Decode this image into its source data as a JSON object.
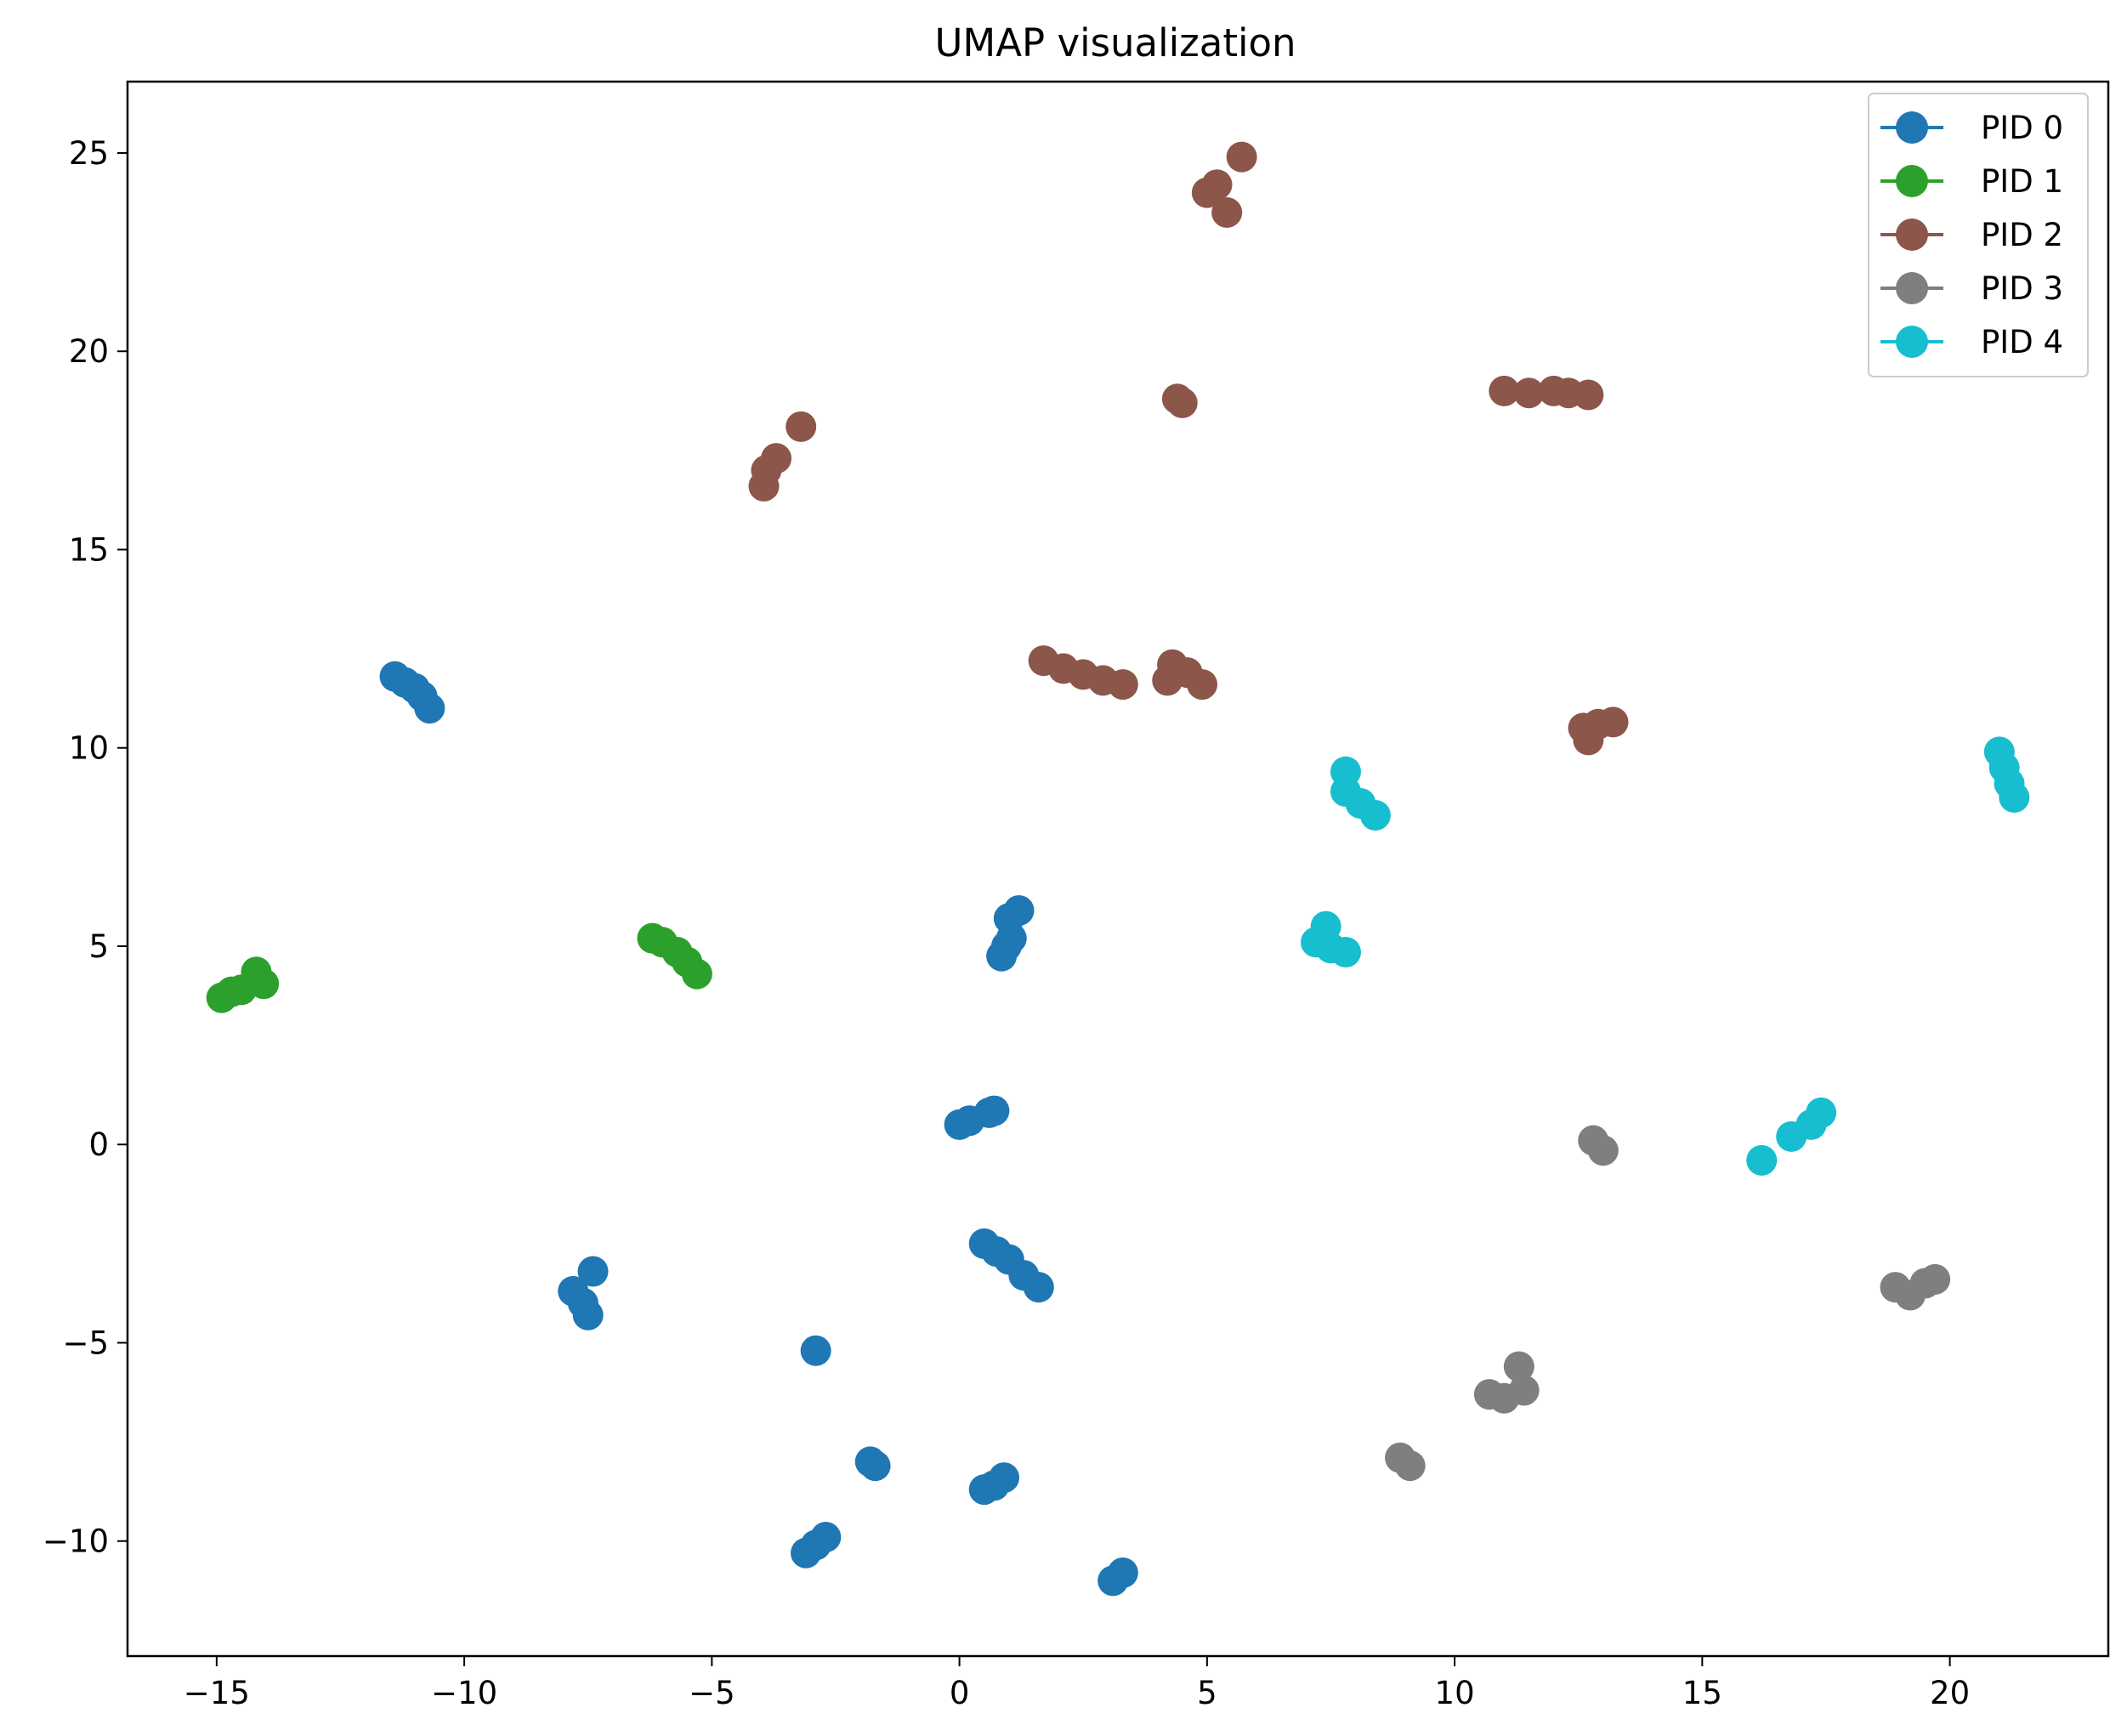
{
  "chart_data": {
    "type": "scatter",
    "title": "UMAP visualization",
    "xlabel": "",
    "ylabel": "",
    "xlim": [
      -16.8,
      23.2
    ],
    "ylim": [
      -12.9,
      26.8
    ],
    "xticks": [
      -15,
      -10,
      -5,
      0,
      5,
      10,
      15,
      20
    ],
    "xtick_labels": [
      "−15",
      "−10",
      "−5",
      "0",
      "5",
      "10",
      "15",
      "20"
    ],
    "yticks": [
      -10,
      -5,
      0,
      5,
      10,
      15,
      20,
      25
    ],
    "ytick_labels": [
      "−10",
      "−5",
      "0",
      "5",
      "10",
      "15",
      "20",
      "25"
    ],
    "grid": false,
    "legend_position": "top-right",
    "series": [
      {
        "name": "PID 0",
        "color": "#1f77b4",
        "points": [
          [
            -11.4,
            11.8
          ],
          [
            -11.2,
            11.65
          ],
          [
            -11.0,
            11.5
          ],
          [
            -10.85,
            11.3
          ],
          [
            -10.7,
            11.0
          ],
          [
            1.2,
            5.9
          ],
          [
            1.0,
            5.7
          ],
          [
            1.05,
            5.2
          ],
          [
            0.95,
            5.0
          ],
          [
            0.85,
            4.75
          ],
          [
            0.0,
            0.5
          ],
          [
            0.2,
            0.6
          ],
          [
            0.6,
            0.8
          ],
          [
            0.7,
            0.85
          ],
          [
            0.5,
            -2.5
          ],
          [
            0.75,
            -2.7
          ],
          [
            1.0,
            -2.9
          ],
          [
            1.3,
            -3.3
          ],
          [
            1.6,
            -3.6
          ],
          [
            -7.8,
            -3.7
          ],
          [
            -7.6,
            -4.0
          ],
          [
            -7.5,
            -4.3
          ],
          [
            -7.4,
            -3.2
          ],
          [
            -2.9,
            -5.2
          ],
          [
            -1.8,
            -8.0
          ],
          [
            -1.7,
            -8.1
          ],
          [
            0.5,
            -8.7
          ],
          [
            0.7,
            -8.6
          ],
          [
            0.9,
            -8.4
          ],
          [
            -3.1,
            -10.3
          ],
          [
            -2.9,
            -10.1
          ],
          [
            -2.7,
            -9.9
          ],
          [
            3.1,
            -11.0
          ],
          [
            3.3,
            -10.8
          ]
        ]
      },
      {
        "name": "PID 1",
        "color": "#2ca02c",
        "points": [
          [
            -14.9,
            3.7
          ],
          [
            -14.7,
            3.85
          ],
          [
            -14.5,
            3.9
          ],
          [
            -14.2,
            4.35
          ],
          [
            -14.05,
            4.05
          ],
          [
            -6.2,
            5.2
          ],
          [
            -6.0,
            5.1
          ],
          [
            -5.7,
            4.85
          ],
          [
            -5.5,
            4.6
          ],
          [
            -5.3,
            4.3
          ]
        ]
      },
      {
        "name": "PID 2",
        "color": "#8c564b",
        "points": [
          [
            5.7,
            24.9
          ],
          [
            5.2,
            24.2
          ],
          [
            5.0,
            24.0
          ],
          [
            5.4,
            23.5
          ],
          [
            4.4,
            18.8
          ],
          [
            4.5,
            18.7
          ],
          [
            11.0,
            19.0
          ],
          [
            11.5,
            18.95
          ],
          [
            12.0,
            19.0
          ],
          [
            12.3,
            18.95
          ],
          [
            12.7,
            18.9
          ],
          [
            -3.2,
            18.1
          ],
          [
            -3.7,
            17.3
          ],
          [
            -3.9,
            17.0
          ],
          [
            -3.95,
            16.6
          ],
          [
            1.7,
            12.2
          ],
          [
            2.1,
            12.0
          ],
          [
            2.5,
            11.85
          ],
          [
            2.9,
            11.7
          ],
          [
            3.3,
            11.6
          ],
          [
            4.3,
            12.1
          ],
          [
            4.6,
            11.9
          ],
          [
            4.9,
            11.6
          ],
          [
            4.2,
            11.7
          ],
          [
            12.6,
            10.5
          ],
          [
            12.9,
            10.6
          ],
          [
            13.2,
            10.65
          ],
          [
            12.7,
            10.2
          ]
        ]
      },
      {
        "name": "PID 3",
        "color": "#7f7f7f",
        "points": [
          [
            12.8,
            0.1
          ],
          [
            13.0,
            -0.15
          ],
          [
            18.9,
            -3.6
          ],
          [
            19.2,
            -3.8
          ],
          [
            19.5,
            -3.5
          ],
          [
            19.7,
            -3.4
          ],
          [
            11.3,
            -5.6
          ],
          [
            10.7,
            -6.3
          ],
          [
            11.0,
            -6.4
          ],
          [
            11.4,
            -6.2
          ],
          [
            8.9,
            -7.9
          ],
          [
            9.1,
            -8.1
          ]
        ]
      },
      {
        "name": "PID 4",
        "color": "#17becf",
        "points": [
          [
            7.8,
            9.4
          ],
          [
            7.8,
            8.9
          ],
          [
            8.1,
            8.6
          ],
          [
            8.4,
            8.3
          ],
          [
            7.2,
            5.1
          ],
          [
            7.4,
            5.5
          ],
          [
            7.5,
            4.95
          ],
          [
            7.8,
            4.85
          ],
          [
            21.0,
            9.9
          ],
          [
            21.1,
            9.5
          ],
          [
            21.2,
            9.1
          ],
          [
            21.3,
            8.75
          ],
          [
            16.2,
            -0.4
          ],
          [
            16.8,
            0.2
          ],
          [
            17.2,
            0.5
          ],
          [
            17.4,
            0.8
          ]
        ]
      }
    ]
  }
}
